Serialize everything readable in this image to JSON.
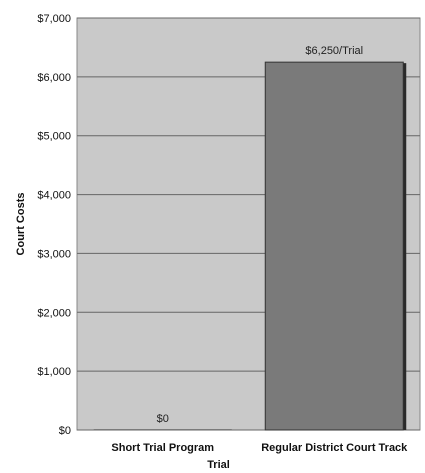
{
  "chart_data": {
    "type": "bar",
    "categories": [
      "Short Trial Program",
      "Regular District Court Track"
    ],
    "values": [
      0,
      6250
    ],
    "data_labels": [
      "$0",
      "$6,250/Trial"
    ],
    "xlabel": "Trial",
    "ylabel": "Court Costs",
    "ylim": [
      0,
      7000
    ],
    "yticks": [
      0,
      1000,
      2000,
      3000,
      4000,
      5000,
      6000,
      7000
    ],
    "ytick_labels": [
      "$0",
      "$1,000",
      "$2,000",
      "$3,000",
      "$4,000",
      "$5,000",
      "$6,000",
      "$7,000"
    ],
    "grid": true,
    "legend": "none",
    "colors": {
      "plot_background": "#c9c9c9",
      "bar_fill": "#7a7a7a",
      "bar_shadow": "#2a2a2a",
      "gridline": "#666666"
    }
  }
}
